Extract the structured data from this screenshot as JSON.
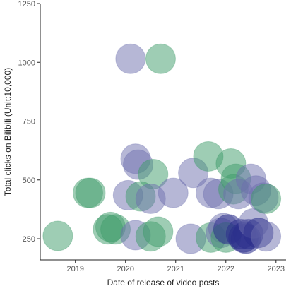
{
  "chart_data": {
    "type": "scatter",
    "xlabel": "Date of release of video posts",
    "ylabel": "Total clicks on Bilibili (Unit:10,000)",
    "xlim": [
      2018.3,
      2023.2
    ],
    "ylim": [
      160,
      1250
    ],
    "x_ticks": [
      {
        "value": 2019,
        "label": "2019"
      },
      {
        "value": 2020,
        "label": "2020"
      },
      {
        "value": 2021,
        "label": "2021"
      },
      {
        "value": 2022,
        "label": "2022"
      },
      {
        "value": 2023,
        "label": "2023"
      }
    ],
    "y_ticks": [
      {
        "value": 250,
        "label": "250"
      },
      {
        "value": 500,
        "label": "500"
      },
      {
        "value": 750,
        "label": "750"
      },
      {
        "value": 1000,
        "label": "1000"
      },
      {
        "value": 1250,
        "label": "1250"
      }
    ],
    "grid": false,
    "colors": {
      "green": "#3e9b6a",
      "purple": "#6d6fae",
      "navy": "#2c2f8c"
    },
    "points": [
      {
        "x": 2018.65,
        "y": 262,
        "color": "green"
      },
      {
        "x": 2019.25,
        "y": 445,
        "color": "green"
      },
      {
        "x": 2019.3,
        "y": 445,
        "color": "green"
      },
      {
        "x": 2019.7,
        "y": 300,
        "color": "green"
      },
      {
        "x": 2019.65,
        "y": 290,
        "color": "green"
      },
      {
        "x": 2019.8,
        "y": 290,
        "color": "green"
      },
      {
        "x": 2020.05,
        "y": 435,
        "color": "purple"
      },
      {
        "x": 2020.2,
        "y": 590,
        "color": "purple"
      },
      {
        "x": 2020.25,
        "y": 565,
        "color": "purple"
      },
      {
        "x": 2020.3,
        "y": 430,
        "color": "green"
      },
      {
        "x": 2020.55,
        "y": 525,
        "color": "green"
      },
      {
        "x": 2020.5,
        "y": 420,
        "color": "purple"
      },
      {
        "x": 2020.2,
        "y": 265,
        "color": "purple"
      },
      {
        "x": 2020.5,
        "y": 260,
        "color": "green"
      },
      {
        "x": 2020.65,
        "y": 280,
        "color": "green"
      },
      {
        "x": 2020.1,
        "y": 1015,
        "color": "purple"
      },
      {
        "x": 2020.7,
        "y": 1015,
        "color": "green"
      },
      {
        "x": 2020.95,
        "y": 445,
        "color": "purple"
      },
      {
        "x": 2021.3,
        "y": 250,
        "color": "purple"
      },
      {
        "x": 2021.35,
        "y": 530,
        "color": "purple"
      },
      {
        "x": 2021.65,
        "y": 600,
        "color": "green"
      },
      {
        "x": 2021.7,
        "y": 255,
        "color": "green"
      },
      {
        "x": 2021.7,
        "y": 445,
        "color": "purple"
      },
      {
        "x": 2021.85,
        "y": 440,
        "color": "purple"
      },
      {
        "x": 2021.9,
        "y": 275,
        "color": "purple"
      },
      {
        "x": 2021.95,
        "y": 295,
        "color": "purple"
      },
      {
        "x": 2022.0,
        "y": 255,
        "color": "green"
      },
      {
        "x": 2022.05,
        "y": 290,
        "color": "navy"
      },
      {
        "x": 2022.1,
        "y": 570,
        "color": "green"
      },
      {
        "x": 2022.15,
        "y": 460,
        "color": "green"
      },
      {
        "x": 2022.2,
        "y": 505,
        "color": "green"
      },
      {
        "x": 2022.25,
        "y": 440,
        "color": "purple"
      },
      {
        "x": 2022.3,
        "y": 270,
        "color": "navy"
      },
      {
        "x": 2022.35,
        "y": 255,
        "color": "navy"
      },
      {
        "x": 2022.4,
        "y": 250,
        "color": "navy"
      },
      {
        "x": 2022.45,
        "y": 270,
        "color": "navy"
      },
      {
        "x": 2022.5,
        "y": 505,
        "color": "purple"
      },
      {
        "x": 2022.55,
        "y": 315,
        "color": "purple"
      },
      {
        "x": 2022.6,
        "y": 455,
        "color": "purple"
      },
      {
        "x": 2022.65,
        "y": 275,
        "color": "navy"
      },
      {
        "x": 2022.75,
        "y": 425,
        "color": "purple"
      },
      {
        "x": 2022.8,
        "y": 420,
        "color": "green"
      },
      {
        "x": 2022.8,
        "y": 260,
        "color": "purple"
      }
    ]
  }
}
